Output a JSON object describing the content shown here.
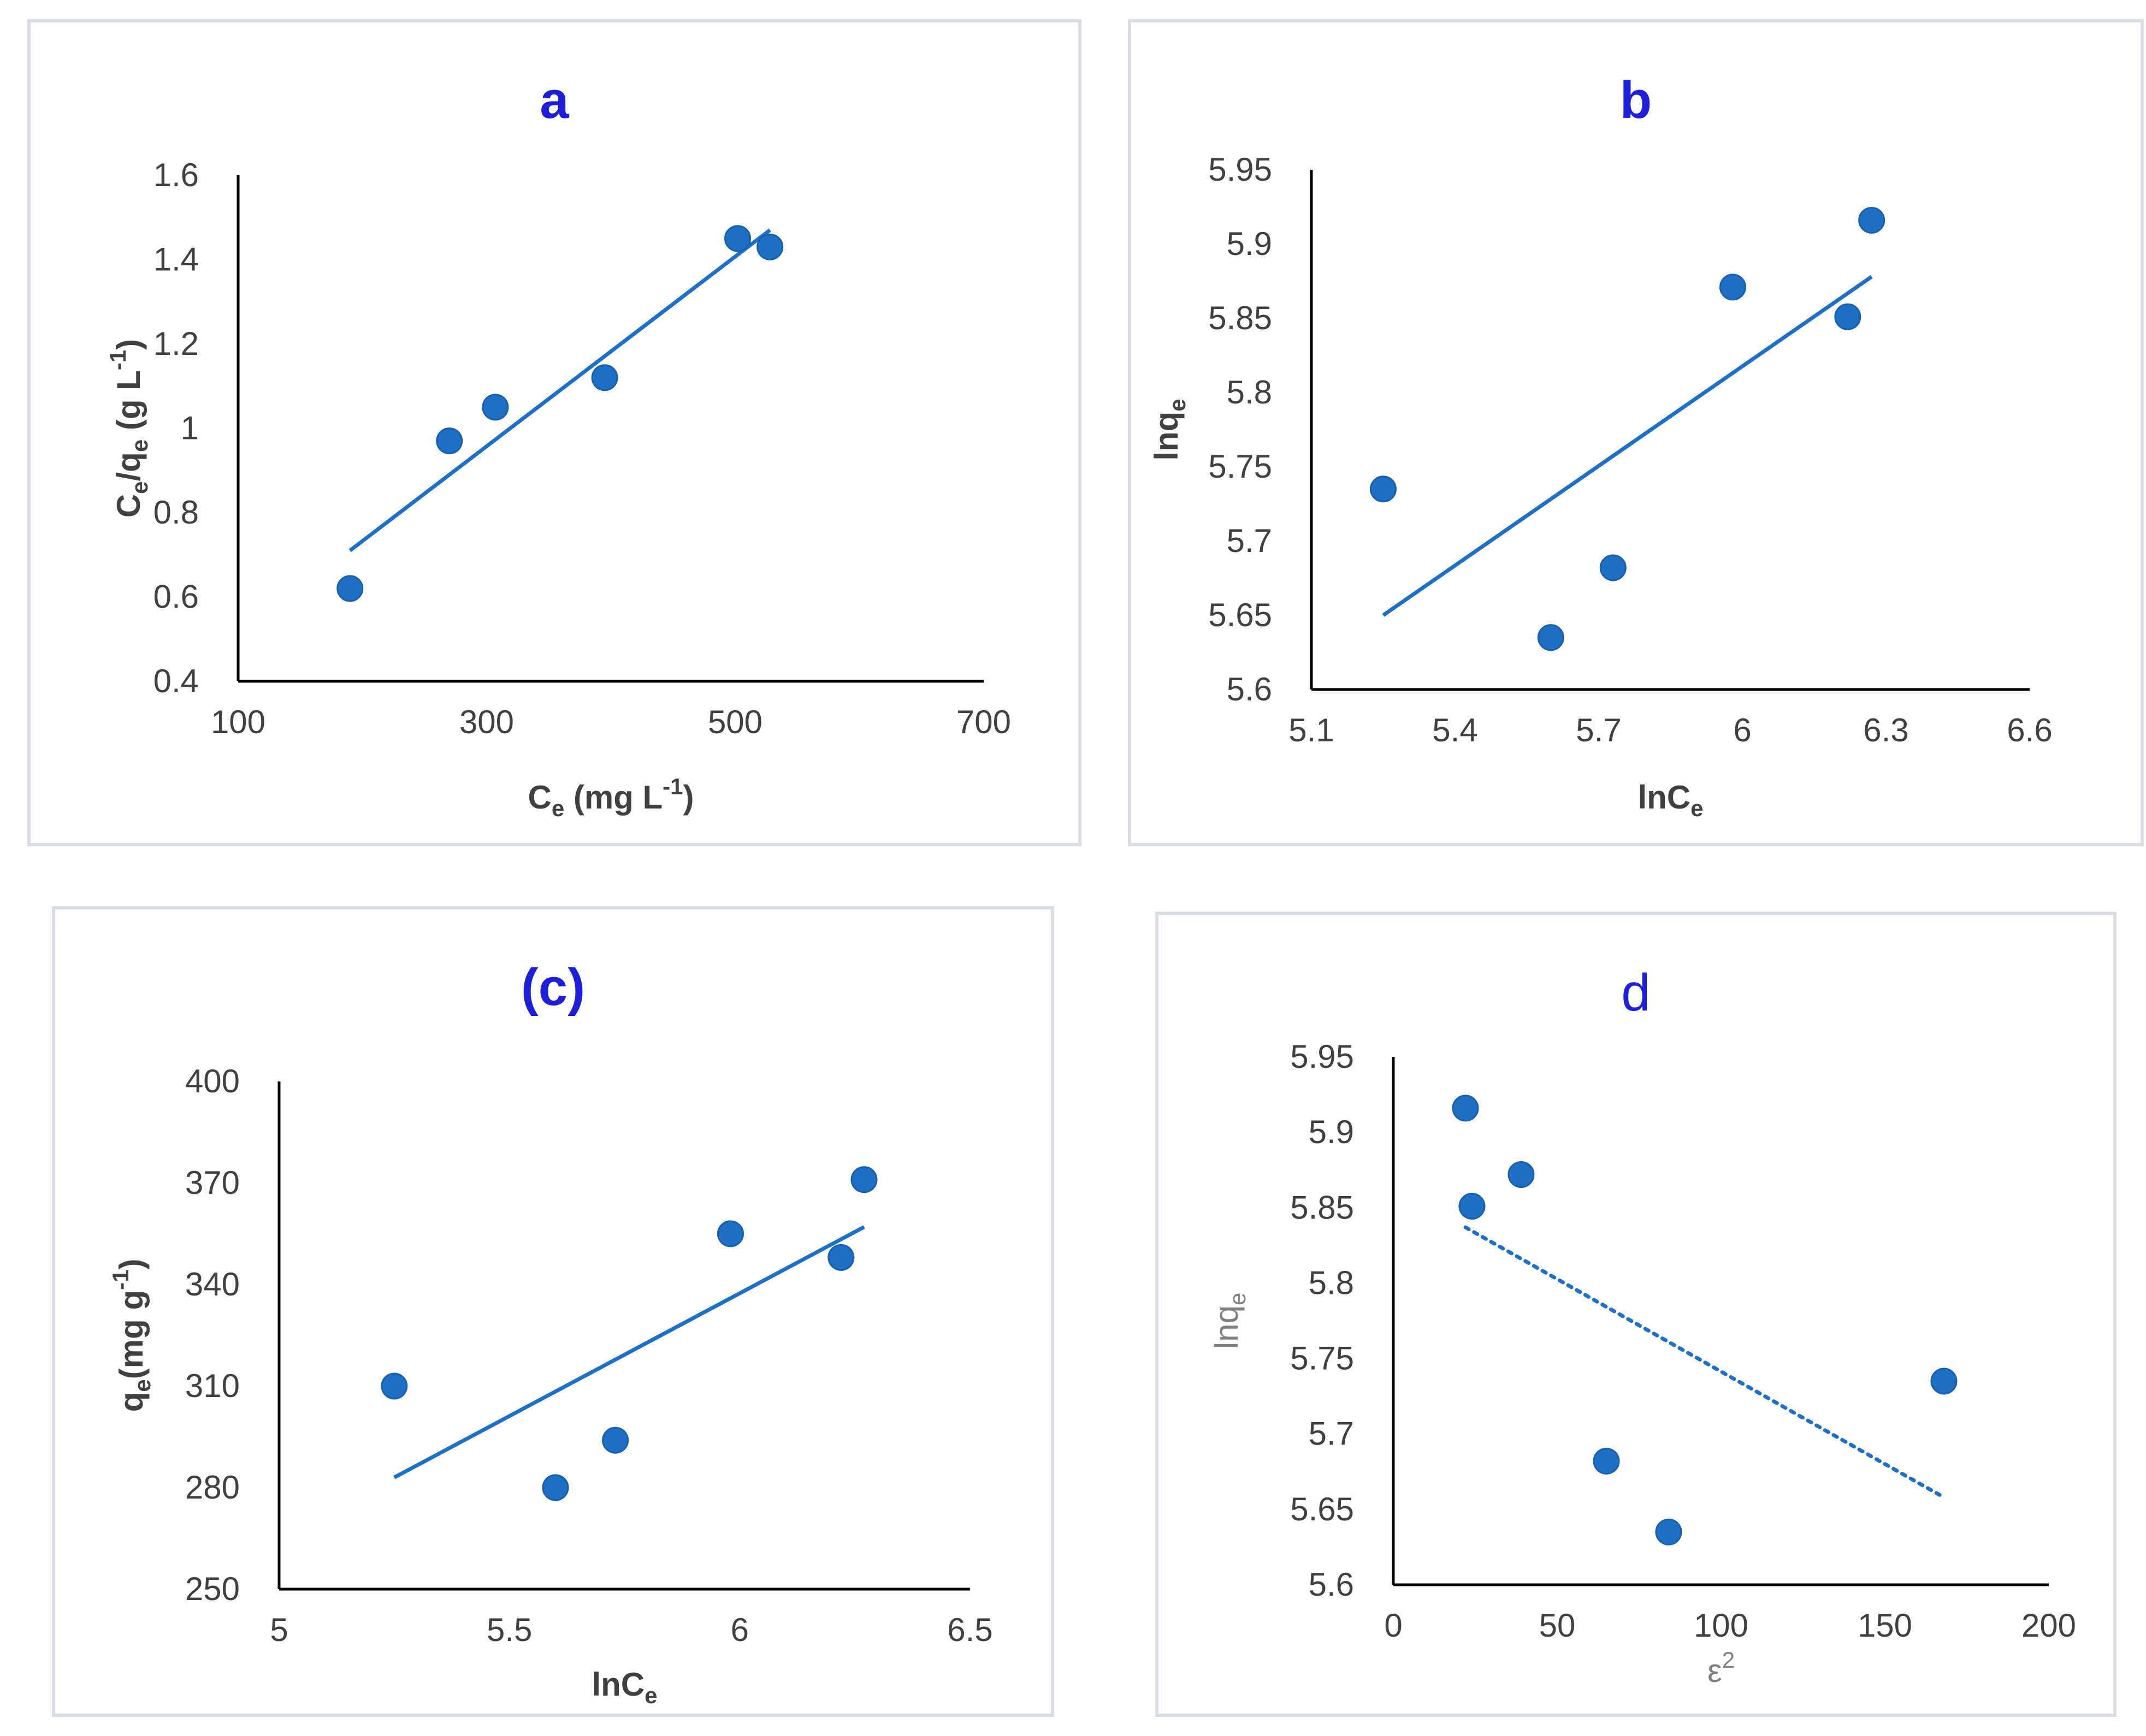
{
  "chart_data": [
    {
      "id": "a",
      "type": "scatter",
      "title": "a",
      "title_color": "#1f1fd6",
      "title_bold": true,
      "xlabel": {
        "main": "C",
        "sub": "e",
        "rest": " (mg L",
        "sup": "-1",
        "end": ")"
      },
      "ylabel": {
        "parts": [
          {
            "t": "C",
            "s": ""
          },
          {
            "t": "e",
            "s": "sub"
          },
          {
            "t": "/q",
            "s": ""
          },
          {
            "t": "e",
            "s": "sub"
          },
          {
            "t": " (g L",
            "s": ""
          },
          {
            "t": "-1",
            "s": "sup"
          },
          {
            "t": ")",
            "s": ""
          }
        ]
      },
      "xlim": [
        100,
        700
      ],
      "ylim": [
        0.4,
        1.6
      ],
      "xticks": [
        100,
        300,
        500,
        700
      ],
      "xtick_labels": [
        "100",
        "300",
        "500",
        "700"
      ],
      "yticks": [
        0.4,
        0.6,
        0.8,
        1.0,
        1.2,
        1.4,
        1.6
      ],
      "ytick_labels": [
        "0.4",
        "0.6",
        "0.8",
        "1",
        "1.2",
        "1.4",
        "1.6"
      ],
      "points": [
        [
          190,
          0.62
        ],
        [
          270,
          0.97
        ],
        [
          307,
          1.05
        ],
        [
          395,
          1.12
        ],
        [
          502,
          1.45
        ],
        [
          528,
          1.43
        ]
      ],
      "trendline": {
        "style": "solid",
        "from": [
          190,
          0.71
        ],
        "to": [
          528,
          1.47
        ]
      },
      "series_color": "#1f6fc5",
      "axis_label_style": "bold"
    },
    {
      "id": "b",
      "type": "scatter",
      "title": "b",
      "title_color": "#1f1fd6",
      "title_bold": true,
      "xlabel": {
        "main": "lnC",
        "sub": "e",
        "rest": "",
        "sup": "",
        "end": ""
      },
      "ylabel": {
        "parts": [
          {
            "t": "lnq",
            "s": ""
          },
          {
            "t": "e",
            "s": "sub"
          }
        ]
      },
      "xlim": [
        5.1,
        6.6
      ],
      "ylim": [
        5.6,
        5.95
      ],
      "xticks": [
        5.1,
        5.4,
        5.7,
        6.0,
        6.3,
        6.6
      ],
      "xtick_labels": [
        "5.1",
        "5.4",
        "5.7",
        "6",
        "6.3",
        "6.6"
      ],
      "yticks": [
        5.6,
        5.65,
        5.7,
        5.75,
        5.8,
        5.85,
        5.9,
        5.95
      ],
      "ytick_labels": [
        "5.6",
        "5.65",
        "5.7",
        "5.75",
        "5.8",
        "5.85",
        "5.9",
        "5.95"
      ],
      "points": [
        [
          5.25,
          5.735
        ],
        [
          5.6,
          5.635
        ],
        [
          5.73,
          5.682
        ],
        [
          5.98,
          5.871
        ],
        [
          6.22,
          5.851
        ],
        [
          6.27,
          5.916
        ]
      ],
      "trendline": {
        "style": "solid",
        "from": [
          5.25,
          5.65
        ],
        "to": [
          6.27,
          5.878
        ]
      },
      "series_color": "#1f6fc5",
      "axis_label_style": "bold"
    },
    {
      "id": "c",
      "type": "scatter",
      "title": "(c)",
      "title_color": "#1f1fd6",
      "title_bold": true,
      "xlabel": {
        "main": "lnC",
        "sub": "e",
        "rest": "",
        "sup": "",
        "end": ""
      },
      "ylabel": {
        "parts": [
          {
            "t": "q",
            "s": ""
          },
          {
            "t": "e",
            "s": "sub"
          },
          {
            "t": "(mg g",
            "s": ""
          },
          {
            "t": "-1",
            "s": "sup"
          },
          {
            "t": ")",
            "s": ""
          }
        ]
      },
      "xlim": [
        5,
        6.5
      ],
      "ylim": [
        250,
        400
      ],
      "xticks": [
        5,
        5.5,
        6,
        6.5
      ],
      "xtick_labels": [
        "5",
        "5.5",
        "6",
        "6.5"
      ],
      "yticks": [
        250,
        280,
        310,
        340,
        370,
        400
      ],
      "ytick_labels": [
        "250",
        "280",
        "310",
        "340",
        "370",
        "400"
      ],
      "points": [
        [
          5.25,
          310
        ],
        [
          5.6,
          280
        ],
        [
          5.73,
          294
        ],
        [
          5.98,
          355
        ],
        [
          6.22,
          348
        ],
        [
          6.27,
          371
        ]
      ],
      "trendline": {
        "style": "solid",
        "from": [
          5.25,
          283
        ],
        "to": [
          6.27,
          357
        ]
      },
      "series_color": "#1f6fc5",
      "axis_label_style": "bold"
    },
    {
      "id": "d",
      "type": "scatter",
      "title": "d",
      "title_color": "#1f1fd6",
      "title_bold": false,
      "xlabel": {
        "main": "ε",
        "sub": "",
        "rest": "",
        "sup": "2",
        "end": ""
      },
      "ylabel": {
        "parts": [
          {
            "t": "lnq",
            "s": ""
          },
          {
            "t": "e",
            "s": "sub"
          }
        ]
      },
      "xlim": [
        0,
        200
      ],
      "ylim": [
        5.6,
        5.95
      ],
      "xticks": [
        0,
        50,
        100,
        150,
        200
      ],
      "xtick_labels": [
        "0",
        "50",
        "100",
        "150",
        "200"
      ],
      "yticks": [
        5.6,
        5.65,
        5.7,
        5.75,
        5.8,
        5.85,
        5.9,
        5.95
      ],
      "ytick_labels": [
        "5.6",
        "5.65",
        "5.7",
        "5.75",
        "5.8",
        "5.85",
        "5.9",
        "5.95"
      ],
      "points": [
        [
          22,
          5.916
        ],
        [
          24,
          5.851
        ],
        [
          39,
          5.872
        ],
        [
          65,
          5.682
        ],
        [
          84,
          5.635
        ],
        [
          168,
          5.735
        ]
      ],
      "trendline": {
        "style": "dotted",
        "from": [
          22,
          5.837
        ],
        "to": [
          168,
          5.658
        ]
      },
      "series_color": "#1f6fc5",
      "axis_label_style": "light"
    }
  ]
}
